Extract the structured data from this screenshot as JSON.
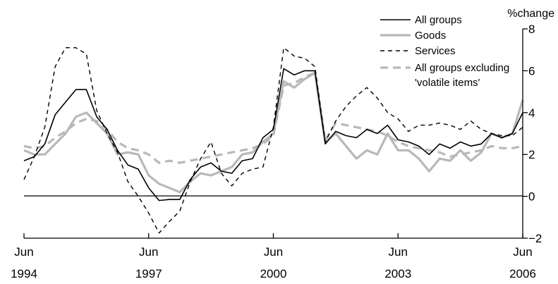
{
  "chart_data": {
    "type": "line",
    "title": "",
    "xlabel": "",
    "ylabel": "%change",
    "ylim": [
      -2,
      8
    ],
    "y_ticks": [
      -2,
      0,
      2,
      4,
      6,
      8
    ],
    "x_ticks": [
      {
        "month": "Jun",
        "year": "1994",
        "x": 0
      },
      {
        "month": "Jun",
        "year": "1997",
        "x": 12
      },
      {
        "month": "Jun",
        "year": "2000",
        "x": 24
      },
      {
        "month": "Jun",
        "year": "2003",
        "x": 36
      },
      {
        "month": "Jun",
        "year": "2006",
        "x": 48
      }
    ],
    "x_unit": "quarters since Jun 1994",
    "zero_line": true,
    "legend_position": "top-right",
    "series": [
      {
        "name": "All groups",
        "style": "solid-black",
        "color": "#000000",
        "x": [
          0,
          1,
          2,
          3,
          4,
          5,
          6,
          7,
          8,
          9,
          10,
          11,
          12,
          13,
          14,
          15,
          16,
          17,
          18,
          19,
          20,
          21,
          22,
          23,
          24,
          25,
          26,
          27,
          28,
          29,
          30,
          31,
          32,
          33,
          34,
          35,
          36,
          37,
          38,
          39,
          40,
          41,
          42,
          43,
          44,
          45,
          46,
          47,
          48
        ],
        "values": [
          1.7,
          1.9,
          2.5,
          3.9,
          4.5,
          5.1,
          5.1,
          3.8,
          3.2,
          2.2,
          1.5,
          1.3,
          0.4,
          -0.2,
          -0.15,
          -0.15,
          0.8,
          1.4,
          1.6,
          1.2,
          1.1,
          1.7,
          1.8,
          2.8,
          3.2,
          6.1,
          5.8,
          6.0,
          6.0,
          2.5,
          3.1,
          2.9,
          2.8,
          3.2,
          3.0,
          3.4,
          2.7,
          2.6,
          2.4,
          2.0,
          2.5,
          2.3,
          2.6,
          2.4,
          2.5,
          3.0,
          2.8,
          3.0,
          4.0
        ]
      },
      {
        "name": "Goods",
        "style": "solid-grey",
        "color": "#b8b8b8",
        "x": [
          0,
          1,
          2,
          3,
          4,
          5,
          6,
          7,
          8,
          9,
          10,
          11,
          12,
          13,
          14,
          15,
          16,
          17,
          18,
          19,
          20,
          21,
          22,
          23,
          24,
          25,
          26,
          27,
          28,
          29,
          30,
          31,
          32,
          33,
          34,
          35,
          36,
          37,
          38,
          39,
          40,
          41,
          42,
          43,
          44,
          45,
          46,
          47,
          48
        ],
        "values": [
          2.2,
          2.0,
          2.0,
          2.5,
          3.0,
          3.8,
          4.0,
          3.5,
          3.0,
          2.0,
          2.1,
          2.0,
          1.0,
          0.6,
          0.4,
          0.2,
          0.7,
          1.1,
          1.0,
          1.2,
          1.4,
          2.0,
          2.1,
          2.6,
          3.0,
          5.5,
          5.2,
          5.6,
          5.9,
          2.6,
          3.0,
          2.4,
          1.8,
          2.2,
          2.0,
          3.0,
          2.2,
          2.2,
          1.8,
          1.2,
          1.8,
          1.7,
          2.2,
          1.7,
          2.1,
          3.0,
          2.8,
          3.0,
          4.6
        ]
      },
      {
        "name": "Services",
        "style": "dashed-black",
        "color": "#000000",
        "x": [
          0,
          1,
          2,
          3,
          4,
          5,
          6,
          7,
          8,
          9,
          10,
          11,
          12,
          13,
          14,
          15,
          16,
          17,
          18,
          19,
          20,
          21,
          22,
          23,
          24,
          25,
          26,
          27,
          28,
          29,
          30,
          31,
          32,
          33,
          34,
          35,
          36,
          37,
          38,
          39,
          40,
          41,
          42,
          43,
          44,
          45,
          46,
          47,
          48
        ],
        "values": [
          0.8,
          1.9,
          3.3,
          6.2,
          7.1,
          7.1,
          6.8,
          4.1,
          3.0,
          2.1,
          0.7,
          0.0,
          -0.8,
          -1.75,
          -1.2,
          -0.7,
          0.7,
          1.8,
          2.6,
          1.1,
          0.5,
          1.1,
          1.3,
          1.4,
          3.3,
          7.1,
          6.7,
          6.6,
          6.2,
          2.6,
          3.6,
          4.3,
          4.8,
          5.2,
          4.7,
          4.0,
          3.7,
          3.1,
          3.4,
          3.4,
          3.5,
          3.4,
          3.2,
          3.6,
          3.2,
          3.0,
          2.9,
          2.9,
          3.3
        ]
      },
      {
        "name": "All groups excluding 'volatile items'",
        "legend_lines": [
          "All groups excluding",
          "'volatile items'"
        ],
        "style": "dashed-grey",
        "color": "#b8b8b8",
        "x": [
          0,
          1,
          2,
          3,
          4,
          5,
          6,
          7,
          8,
          9,
          10,
          11,
          12,
          13,
          14,
          15,
          16,
          17,
          18,
          19,
          20,
          21,
          22,
          23,
          24,
          25,
          26,
          27,
          28,
          29,
          30,
          31,
          32,
          33,
          34,
          35,
          36,
          37,
          38,
          39,
          40,
          41,
          42,
          43,
          44,
          45,
          46,
          47,
          48
        ],
        "values": [
          2.4,
          2.3,
          2.4,
          2.8,
          3.1,
          3.5,
          3.7,
          3.6,
          3.2,
          2.6,
          2.3,
          2.2,
          2.0,
          1.6,
          1.7,
          1.6,
          1.7,
          1.8,
          1.9,
          2.0,
          2.1,
          2.2,
          2.3,
          2.5,
          2.9,
          5.3,
          5.4,
          5.7,
          5.9,
          2.7,
          3.5,
          3.4,
          3.3,
          3.2,
          3.1,
          2.9,
          2.6,
          2.4,
          2.3,
          2.2,
          2.1,
          1.9,
          2.0,
          2.1,
          2.2,
          2.4,
          2.3,
          2.3,
          2.4
        ]
      }
    ]
  }
}
